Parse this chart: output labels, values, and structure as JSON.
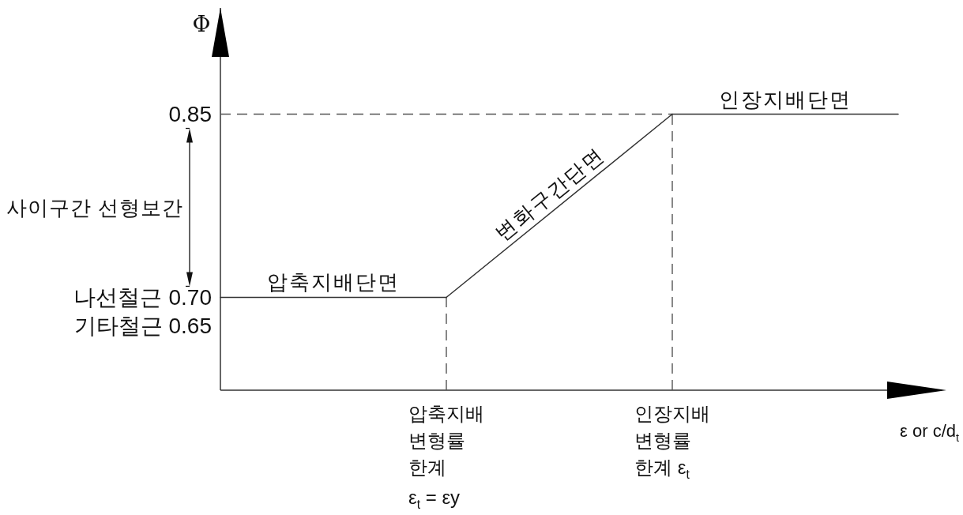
{
  "chart_data": {
    "type": "line",
    "xlabel": "ε or c/d$_{t}$",
    "ylabel": "Φ",
    "categories": [
      null,
      "압축지배\n변형률\n한계\nε$_{t}$ = εy",
      "인장지배\n변형률\n한계 ε$_{t}$",
      null
    ],
    "series": [
      {
        "name": "압축지배단면",
        "color": "#333333",
        "values": [
          0.7,
          0.7,
          null,
          null
        ]
      },
      {
        "name": "변화구간단면",
        "color": "#333333",
        "values": [
          null,
          0.7,
          0.85,
          null
        ]
      },
      {
        "name": "인장지배단면",
        "color": "#333333",
        "values": [
          null,
          null,
          0.85,
          0.85
        ]
      }
    ],
    "ylim": [
      0.624,
      0.937
    ],
    "yticks": [
      {
        "value": 0.7,
        "label": "0.70"
      },
      0.85
    ],
    "ref_lines": [
      {
        "axis": "y",
        "value": 0.85,
        "color": "#555555",
        "line_style": "dashed"
      },
      {
        "axis": "x",
        "value": "압축지배\n변형률\n한계\nε$_{t}$ = εy",
        "color": "#555555",
        "line_style": "dashed"
      },
      {
        "axis": "x",
        "value": "인장지배\n변형률\n한계 ε$_{t}$",
        "color": "#555555",
        "line_style": "dashed"
      }
    ],
    "annotations": [
      "사이구간 선형보간",
      "나선철근",
      "기타철근 0.65"
    ]
  }
}
